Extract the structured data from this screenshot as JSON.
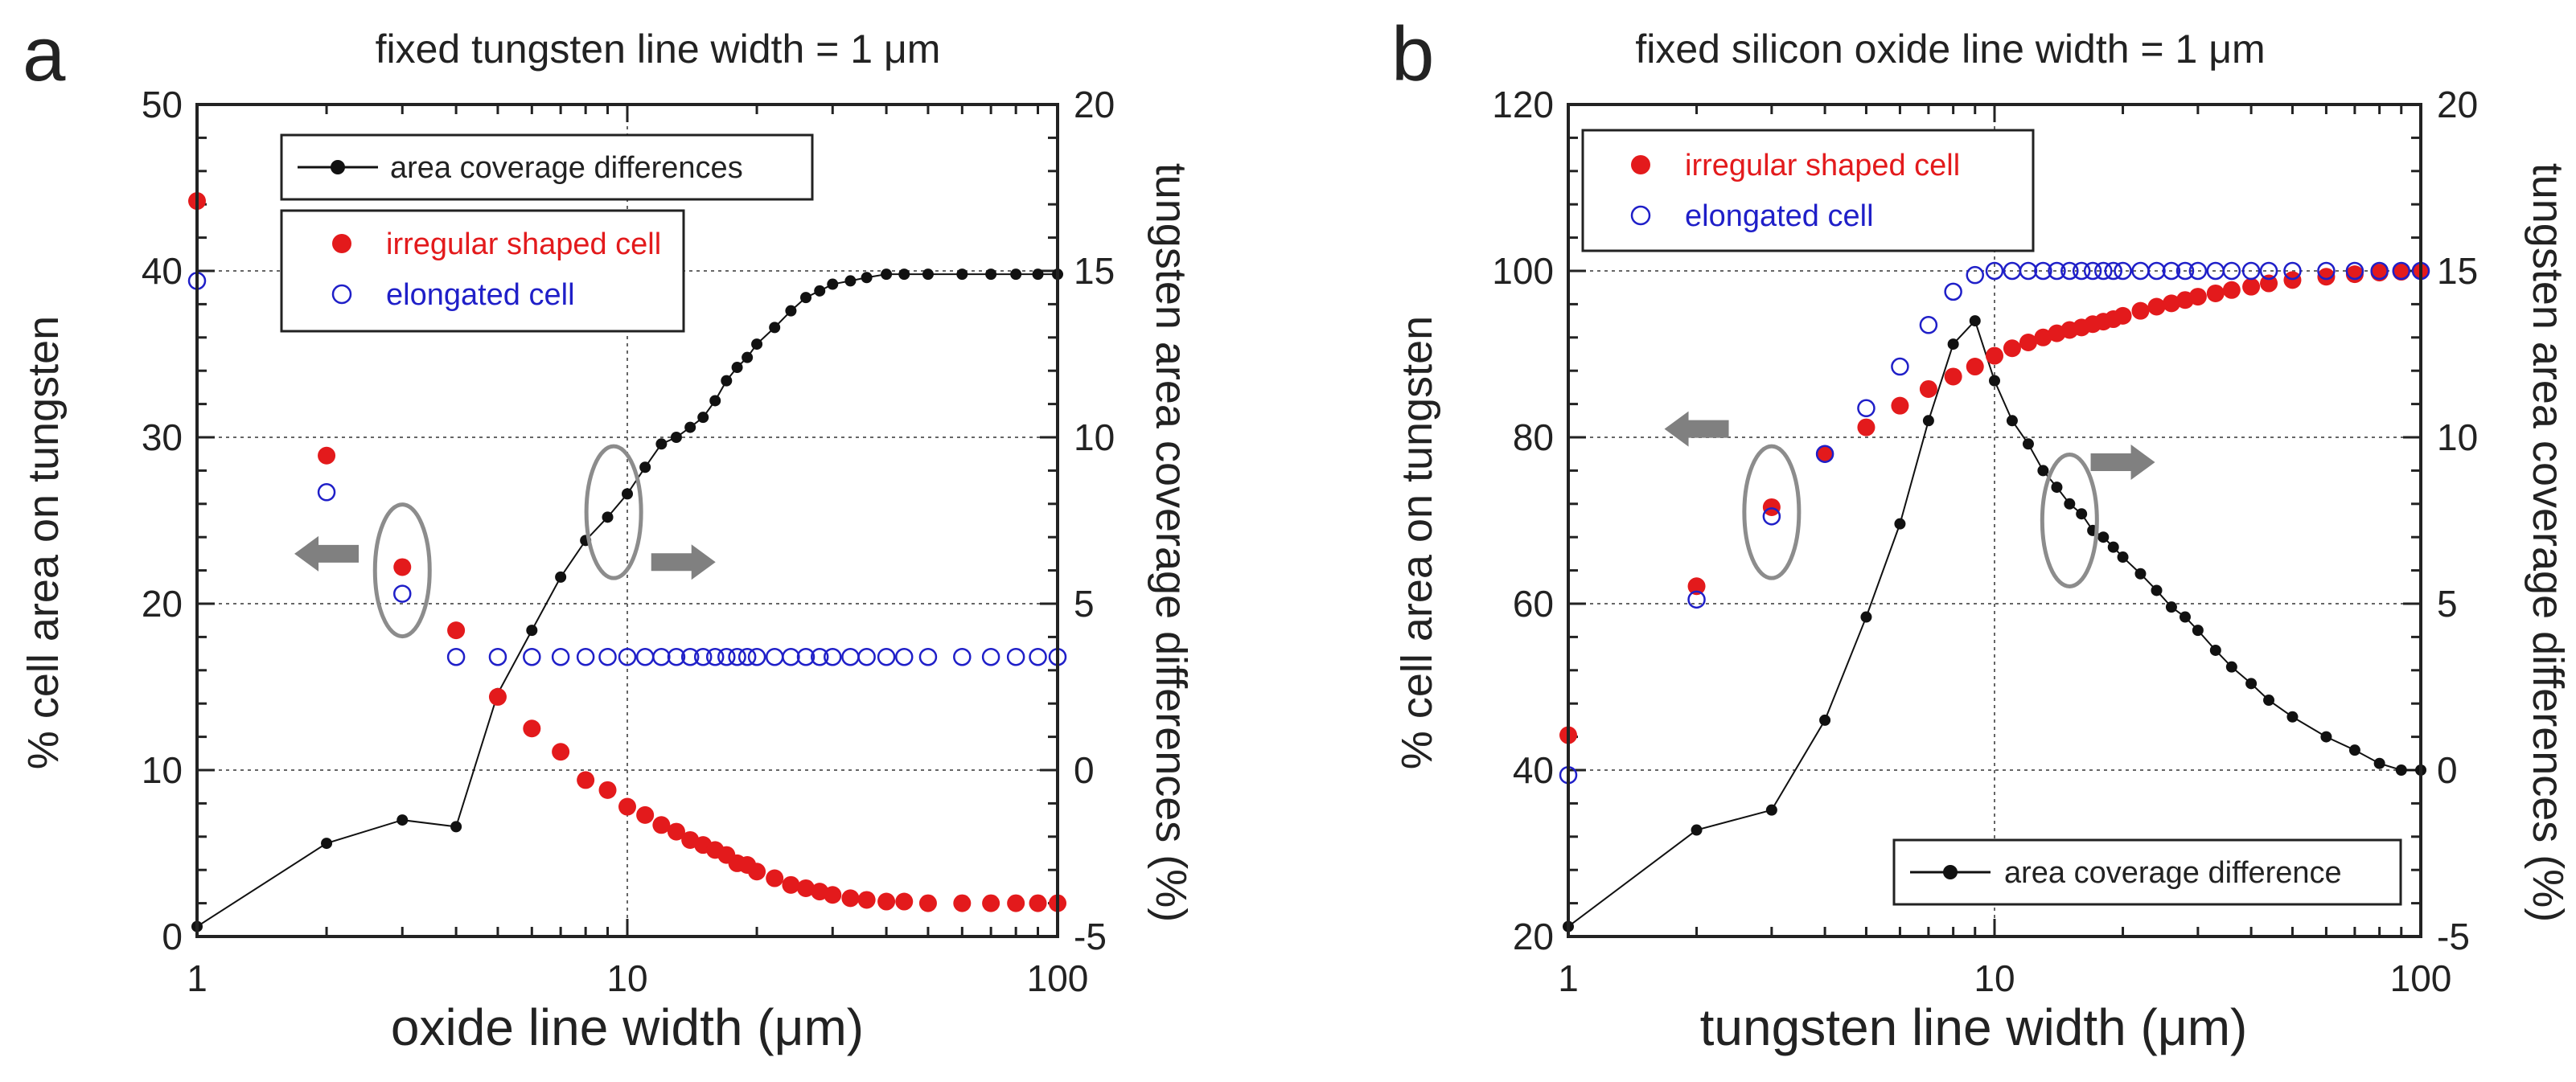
{
  "figure": {
    "colors": {
      "irregular": "#e31a1c",
      "elongated": "#1f1fc8",
      "difference": "#111111",
      "arrow": "#808080",
      "ellipse": "#8c8c8c"
    }
  },
  "chart_data": [
    {
      "type": "scatter",
      "panel_label": "a",
      "title": "fixed tungsten line width = 1 μm",
      "xlabel": "oxide line width (μm)",
      "ylabel_left": "% cell area on tungsten",
      "ylabel_right": "tungsten area coverage differences (%)",
      "xscale": "log",
      "xlim": [
        1,
        100
      ],
      "ylim_left": [
        0,
        50
      ],
      "ylim_right": [
        -5,
        20
      ],
      "xticks": [
        1,
        10,
        100
      ],
      "xtick_labels": [
        "1",
        "10",
        "100"
      ],
      "yticks_left": [
        0,
        10,
        20,
        30,
        40,
        50
      ],
      "ytick_labels_left": [
        "0",
        "10",
        "20",
        "30",
        "40",
        "50"
      ],
      "yticks_right": [
        -5,
        0,
        5,
        10,
        15,
        20
      ],
      "ytick_labels_right": [
        "-5",
        "0",
        "5",
        "10",
        "15",
        "20"
      ],
      "grid_x": [
        10
      ],
      "grid_y_left": [
        10,
        20,
        30,
        40
      ],
      "legend": {
        "line_label": "area coverage differences",
        "irregular_label": "irregular shaped cell",
        "elongated_label": "elongated cell"
      },
      "series": [
        {
          "name": "area coverage differences",
          "axis": "right",
          "style": "line",
          "x": [
            1,
            2,
            3,
            4,
            5,
            6,
            7,
            8,
            9,
            10,
            11,
            12,
            13,
            14,
            15,
            16,
            17,
            18,
            19,
            20,
            22,
            24,
            26,
            28,
            30,
            33,
            36,
            40,
            44,
            50,
            60,
            70,
            80,
            90,
            100
          ],
          "y": [
            -4.7,
            -2.2,
            -1.5,
            -1.7,
            2.3,
            4.2,
            5.8,
            6.9,
            7.6,
            8.3,
            9.1,
            9.8,
            10.0,
            10.3,
            10.6,
            11.1,
            11.7,
            12.1,
            12.4,
            12.8,
            13.3,
            13.8,
            14.2,
            14.4,
            14.6,
            14.7,
            14.8,
            14.9,
            14.9,
            14.9,
            14.9,
            14.9,
            14.9,
            14.9,
            14.9
          ]
        },
        {
          "name": "irregular shaped cell",
          "axis": "left",
          "style": "filled-circle",
          "x": [
            1,
            2,
            3,
            4,
            5,
            6,
            7,
            8,
            9,
            10,
            11,
            12,
            13,
            14,
            15,
            16,
            17,
            18,
            19,
            20,
            22,
            24,
            26,
            28,
            30,
            33,
            36,
            40,
            44,
            50,
            60,
            70,
            80,
            90,
            100
          ],
          "y": [
            44.2,
            28.9,
            22.2,
            18.4,
            14.4,
            12.5,
            11.1,
            9.4,
            8.8,
            7.8,
            7.3,
            6.7,
            6.3,
            5.8,
            5.5,
            5.2,
            4.9,
            4.4,
            4.3,
            3.9,
            3.5,
            3.1,
            2.9,
            2.7,
            2.5,
            2.3,
            2.2,
            2.1,
            2.1,
            2.0,
            2.0,
            2.0,
            2.0,
            2.0,
            2.0
          ]
        },
        {
          "name": "elongated cell",
          "axis": "left",
          "style": "open-circle",
          "x": [
            1,
            2,
            3,
            4,
            5,
            6,
            7,
            8,
            9,
            10,
            11,
            12,
            13,
            14,
            15,
            16,
            17,
            18,
            19,
            20,
            22,
            24,
            26,
            28,
            30,
            33,
            36,
            40,
            44,
            50,
            60,
            70,
            80,
            90,
            100
          ],
          "y": [
            39.4,
            26.7,
            20.6,
            16.8,
            16.8,
            16.8,
            16.8,
            16.8,
            16.8,
            16.8,
            16.8,
            16.8,
            16.8,
            16.8,
            16.8,
            16.8,
            16.8,
            16.8,
            16.8,
            16.8,
            16.8,
            16.8,
            16.8,
            16.8,
            16.8,
            16.8,
            16.8,
            16.8,
            16.8,
            16.8,
            16.8,
            16.8,
            16.8,
            16.8,
            16.8
          ]
        }
      ],
      "annotations": [
        {
          "type": "ellipse",
          "x": 3,
          "y_left": 22,
          "meaning": "group -> left axis"
        },
        {
          "type": "arrow",
          "direction": "left",
          "x": 2,
          "y_left": 23
        },
        {
          "type": "ellipse",
          "x": 9.3,
          "y_left": 25.5,
          "meaning": "group -> right axis"
        },
        {
          "type": "arrow",
          "direction": "right",
          "x": 13.5,
          "y_left": 22.5
        }
      ]
    },
    {
      "type": "scatter",
      "panel_label": "b",
      "title": "fixed silicon oxide line width = 1 μm",
      "xlabel": "tungsten line width (μm)",
      "ylabel_left": "% cell area on tungsten",
      "ylabel_right": "tungsten area coverage differences (%)",
      "xscale": "log",
      "xlim": [
        1,
        100
      ],
      "ylim_left": [
        20,
        120
      ],
      "ylim_right": [
        -5,
        20
      ],
      "xticks": [
        1,
        10,
        100
      ],
      "xtick_labels": [
        "1",
        "10",
        "100"
      ],
      "yticks_left": [
        20,
        40,
        60,
        80,
        100,
        120
      ],
      "ytick_labels_left": [
        "20",
        "40",
        "60",
        "80",
        "100",
        "120"
      ],
      "yticks_right": [
        -5,
        0,
        5,
        10,
        15,
        20
      ],
      "ytick_labels_right": [
        "-5",
        "0",
        "5",
        "10",
        "15",
        "20"
      ],
      "grid_x": [
        10
      ],
      "grid_y_left": [
        40,
        60,
        80,
        100
      ],
      "legend": {
        "line_label": "area coverage difference",
        "irregular_label": "irregular shaped cell",
        "elongated_label": "elongated cell"
      },
      "series": [
        {
          "name": "area coverage difference",
          "axis": "right",
          "style": "line",
          "x": [
            1,
            2,
            3,
            4,
            5,
            6,
            7,
            8,
            9,
            10,
            11,
            12,
            13,
            14,
            15,
            16,
            17,
            18,
            19,
            20,
            22,
            24,
            26,
            28,
            30,
            33,
            36,
            40,
            44,
            50,
            60,
            70,
            80,
            90,
            100
          ],
          "y": [
            -4.7,
            -1.8,
            -1.2,
            1.5,
            4.6,
            7.4,
            10.5,
            12.8,
            13.5,
            11.7,
            10.5,
            9.8,
            9.0,
            8.5,
            8.0,
            7.7,
            7.2,
            7.0,
            6.7,
            6.4,
            5.9,
            5.4,
            4.9,
            4.6,
            4.2,
            3.6,
            3.1,
            2.6,
            2.1,
            1.6,
            1.0,
            0.6,
            0.2,
            0.0,
            0.0
          ]
        },
        {
          "name": "irregular shaped cell",
          "axis": "left",
          "style": "filled-circle",
          "x": [
            1,
            2,
            3,
            4,
            5,
            6,
            7,
            8,
            9,
            10,
            11,
            12,
            13,
            14,
            15,
            16,
            17,
            18,
            19,
            20,
            22,
            24,
            26,
            28,
            30,
            33,
            36,
            40,
            44,
            50,
            60,
            70,
            80,
            90,
            100
          ],
          "y": [
            44.2,
            62.1,
            71.6,
            78.0,
            81.2,
            83.8,
            85.8,
            87.3,
            88.5,
            89.8,
            90.7,
            91.4,
            92.0,
            92.5,
            92.9,
            93.2,
            93.6,
            93.9,
            94.2,
            94.6,
            95.2,
            95.7,
            96.1,
            96.5,
            96.9,
            97.3,
            97.7,
            98.1,
            98.5,
            98.9,
            99.3,
            99.6,
            99.8,
            99.9,
            100.0
          ]
        },
        {
          "name": "elongated cell",
          "axis": "left",
          "style": "open-circle",
          "x": [
            1,
            2,
            3,
            4,
            5,
            6,
            7,
            8,
            9,
            10,
            11,
            12,
            13,
            14,
            15,
            16,
            17,
            18,
            19,
            20,
            22,
            24,
            26,
            28,
            30,
            33,
            36,
            40,
            44,
            50,
            60,
            70,
            80,
            90,
            100
          ],
          "y": [
            39.4,
            60.5,
            70.5,
            78.0,
            83.5,
            88.5,
            93.5,
            97.5,
            99.5,
            100,
            100,
            100,
            100,
            100,
            100,
            100,
            100,
            100,
            100,
            100,
            100,
            100,
            100,
            100,
            100,
            100,
            100,
            100,
            100,
            100,
            100,
            100,
            100,
            100,
            100
          ]
        }
      ],
      "annotations": [
        {
          "type": "ellipse",
          "x": 3,
          "y_left": 71,
          "meaning": "group -> left axis"
        },
        {
          "type": "arrow",
          "direction": "left",
          "x": 2,
          "y_left": 81
        },
        {
          "type": "ellipse",
          "x": 15,
          "y_left": 70,
          "meaning": "group -> right axis"
        },
        {
          "type": "arrow",
          "direction": "right",
          "x": 20,
          "y_left": 77
        }
      ]
    }
  ]
}
